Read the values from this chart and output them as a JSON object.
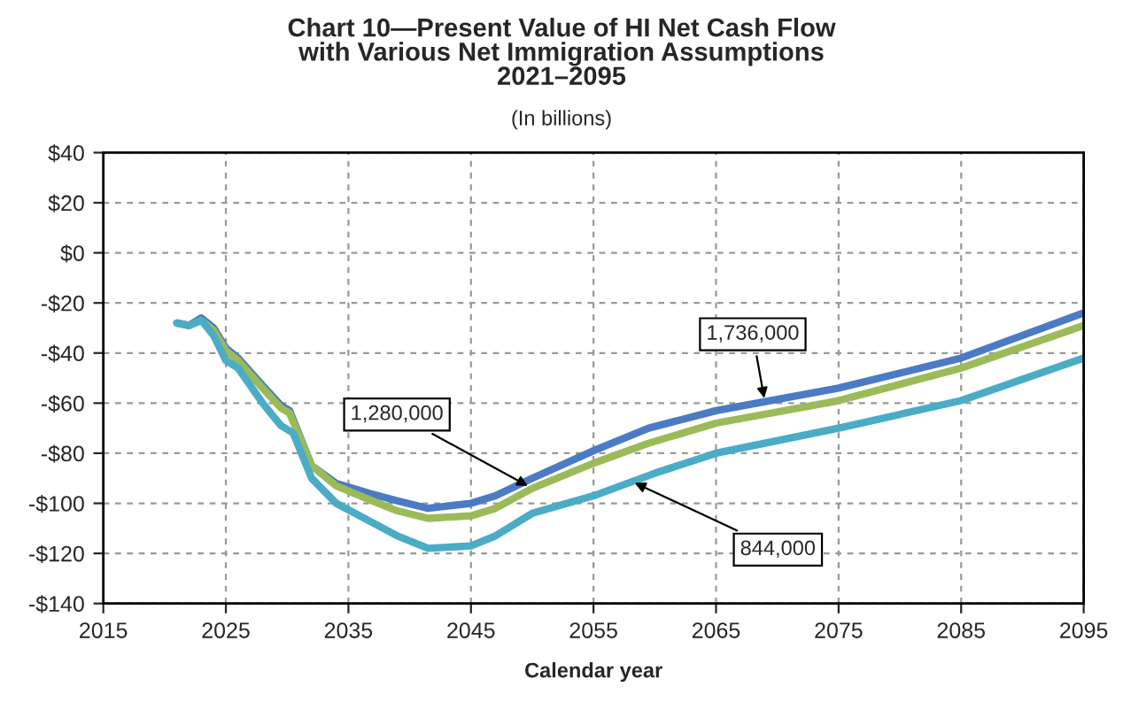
{
  "chart_data": {
    "type": "line",
    "title": "Chart 10—Present Value of HI Net Cash Flow\nwith Various Net Immigration Assumptions\n2021–2095",
    "subtitle": "(In billions)",
    "xlabel": "Calendar year",
    "xlim": [
      2015,
      2095
    ],
    "xticks": [
      2015,
      2025,
      2035,
      2045,
      2055,
      2065,
      2075,
      2085,
      2095
    ],
    "ylim": [
      -140,
      40
    ],
    "yticks": [
      {
        "value": -140,
        "label": "-$140"
      },
      {
        "value": -120,
        "label": "-$120"
      },
      {
        "value": -100,
        "label": "-$100"
      },
      {
        "value": -80,
        "label": "-$80"
      },
      {
        "value": -60,
        "label": "-$60"
      },
      {
        "value": -40,
        "label": "-$40"
      },
      {
        "value": -20,
        "label": "-$20"
      },
      {
        "value": 0,
        "label": "$0"
      },
      {
        "value": 20,
        "label": "$20"
      },
      {
        "value": 40,
        "label": "$40"
      }
    ],
    "grid": true,
    "legend": false,
    "line_style": "solid",
    "marker": "none",
    "series": [
      {
        "color": "#4a7bc4",
        "x": [
          2021,
          2022,
          2023,
          2024,
          2025,
          2026,
          2028,
          2029.5,
          2030.2,
          2032,
          2034,
          2036.7,
          2039,
          2041.5,
          2045,
          2047,
          2050,
          2055,
          2059.5,
          2065,
          2075,
          2085,
          2095
        ],
        "values": [
          -28,
          -29,
          -26,
          -30,
          -38,
          -42,
          -53,
          -61,
          -63,
          -85,
          -92,
          -96,
          -99,
          -102,
          -100,
          -97,
          -90,
          -79,
          -70,
          -63,
          -54,
          -42,
          -24
        ]
      },
      {
        "color": "#9bbb59",
        "x": [
          2021,
          2022,
          2023,
          2024,
          2025,
          2026,
          2028,
          2029.5,
          2030.2,
          2032,
          2034,
          2036.7,
          2039,
          2041.5,
          2045,
          2047,
          2050,
          2055,
          2059.5,
          2065,
          2075,
          2085,
          2095
        ],
        "values": [
          -28,
          -29,
          -27,
          -31,
          -39,
          -43,
          -54,
          -62,
          -64,
          -85,
          -93,
          -98.5,
          -103,
          -106,
          -105,
          -102,
          -94,
          -84,
          -76,
          -68,
          -59,
          -46,
          -29
        ]
      },
      {
        "color": "#4bacc6",
        "x": [
          2021,
          2022,
          2023,
          2024,
          2025,
          2026,
          2028,
          2029.5,
          2030.5,
          2032,
          2034,
          2036.7,
          2039,
          2041.5,
          2045,
          2047,
          2050,
          2055,
          2060,
          2065,
          2075,
          2085,
          2095
        ],
        "values": [
          -28,
          -29,
          -27,
          -33,
          -43,
          -46,
          -60,
          -69,
          -72,
          -90,
          -100,
          -107,
          -113,
          -118,
          -117,
          -113,
          -104,
          -97,
          -88,
          -80,
          -70,
          -59,
          -42
        ]
      }
    ],
    "annotations": [
      {
        "text": "1,736,000",
        "x": 2069,
        "y": -60
      },
      {
        "text": "1,280,000",
        "x": 2050,
        "y": -94
      },
      {
        "text": "844,000",
        "x": 2058,
        "y": -91
      }
    ]
  }
}
